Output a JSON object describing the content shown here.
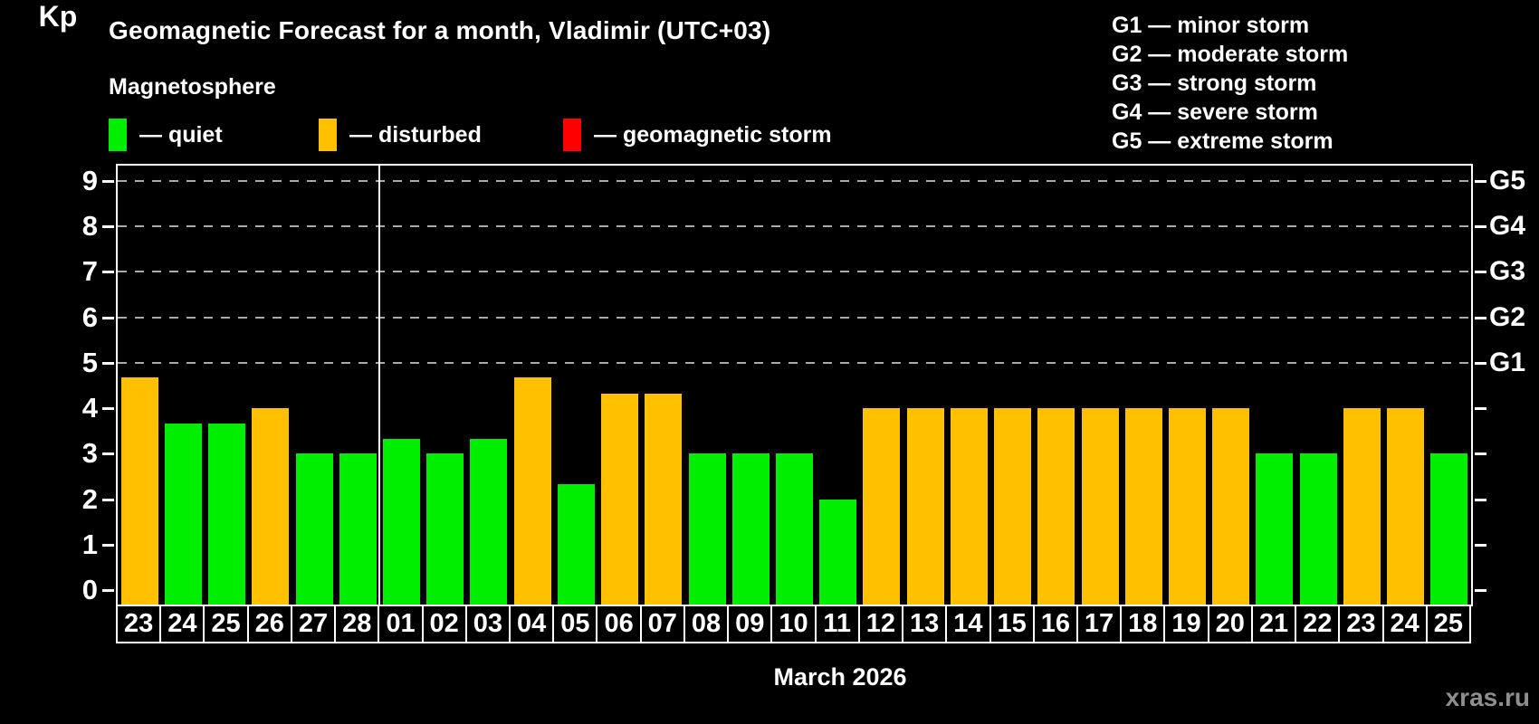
{
  "header": {
    "title": "Geomagnetic Forecast for a month, Vladimir (UTC+03)",
    "subtitle": "Magnetosphere",
    "legend": [
      {
        "key": "quiet",
        "label": "— quiet",
        "color": "#00ee00"
      },
      {
        "key": "disturbed",
        "label": "— disturbed",
        "color": "#ffc000"
      },
      {
        "key": "storm",
        "label": "— geomagnetic storm",
        "color": "#ff0000"
      }
    ],
    "g_legend": [
      "G1 — minor storm",
      "G2 — moderate storm",
      "G3 — strong storm",
      "G4 — severe storm",
      "G5 — extreme storm"
    ]
  },
  "chart_data": {
    "type": "bar",
    "title": "Geomagnetic Forecast for a month, Vladimir (UTC+03)",
    "ylabel": "Kp",
    "xlabel": "March 2026",
    "ylim": [
      0,
      9
    ],
    "yticks": [
      0,
      1,
      2,
      3,
      4,
      5,
      6,
      7,
      8,
      9
    ],
    "gridlines_at": [
      5,
      6,
      7,
      8,
      9
    ],
    "grid": "dashed",
    "right_axis_labels": [
      {
        "kp": 5,
        "label": "G1"
      },
      {
        "kp": 6,
        "label": "G2"
      },
      {
        "kp": 7,
        "label": "G3"
      },
      {
        "kp": 8,
        "label": "G4"
      },
      {
        "kp": 9,
        "label": "G5"
      }
    ],
    "month_separator_after_index": 5,
    "categories": [
      "23",
      "24",
      "25",
      "26",
      "27",
      "28",
      "01",
      "02",
      "03",
      "04",
      "05",
      "06",
      "07",
      "08",
      "09",
      "10",
      "11",
      "12",
      "13",
      "14",
      "15",
      "16",
      "17",
      "18",
      "19",
      "20",
      "21",
      "22",
      "23",
      "24",
      "25"
    ],
    "values": [
      4.67,
      3.67,
      3.67,
      4,
      3,
      3,
      3.33,
      3,
      3.33,
      4.67,
      2.33,
      4.33,
      4.33,
      3,
      3,
      3,
      2,
      4,
      4,
      4,
      4,
      4,
      4,
      4,
      4,
      4,
      3,
      3,
      4,
      4,
      3
    ],
    "states": [
      "disturbed",
      "quiet",
      "quiet",
      "disturbed",
      "quiet",
      "quiet",
      "quiet",
      "quiet",
      "quiet",
      "disturbed",
      "quiet",
      "disturbed",
      "disturbed",
      "quiet",
      "quiet",
      "quiet",
      "quiet",
      "disturbed",
      "disturbed",
      "disturbed",
      "disturbed",
      "disturbed",
      "disturbed",
      "disturbed",
      "disturbed",
      "disturbed",
      "quiet",
      "quiet",
      "disturbed",
      "disturbed",
      "quiet"
    ],
    "palette": {
      "quiet": "#00ee00",
      "disturbed": "#ffc000",
      "storm": "#ff0000"
    }
  },
  "footer": {
    "month_label": "March 2026",
    "watermark": "xras.ru"
  }
}
